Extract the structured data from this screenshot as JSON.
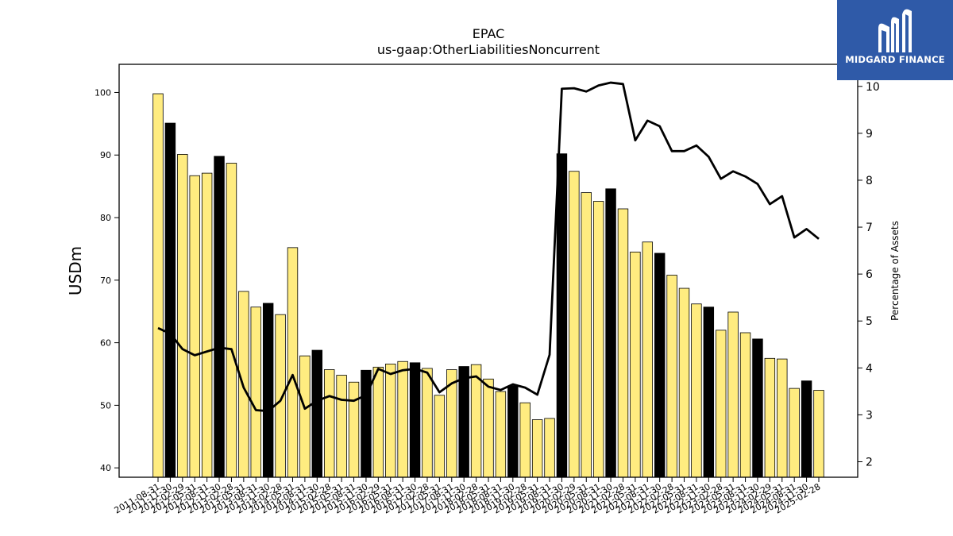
{
  "chart_data": {
    "type": "bar",
    "title": "EPAC",
    "subtitle": "us-gaap:OtherLiabilitiesNoncurrent",
    "ylabel": "USDm",
    "y2label": "Percentage of Assets",
    "ylim": [
      38.5,
      104.5
    ],
    "y2lim": [
      1.67,
      10.47
    ],
    "yticks": [
      40,
      50,
      60,
      70,
      80,
      90,
      100
    ],
    "y2ticks": [
      2,
      3,
      4,
      5,
      6,
      7,
      8,
      9,
      10
    ],
    "bar_color": "#ffec80",
    "highlight_color": "#000000",
    "line_color": "#000000",
    "categories": [
      "2011-08-31",
      "2011-11-30",
      "2012-02-29",
      "2012-05-31",
      "2012-08-31",
      "2012-11-30",
      "2013-02-28",
      "2013-05-31",
      "2013-08-31",
      "2013-11-30",
      "2014-02-28",
      "2014-05-31",
      "2014-08-31",
      "2014-11-30",
      "2015-02-28",
      "2015-05-31",
      "2015-08-31",
      "2015-11-30",
      "2016-02-29",
      "2016-05-31",
      "2016-08-31",
      "2016-11-30",
      "2017-02-28",
      "2017-05-31",
      "2017-08-31",
      "2017-11-30",
      "2018-02-28",
      "2018-05-31",
      "2018-08-31",
      "2018-11-30",
      "2019-02-28",
      "2019-05-31",
      "2019-08-31",
      "2019-11-30",
      "2020-02-29",
      "2020-05-31",
      "2020-08-31",
      "2020-11-30",
      "2021-02-28",
      "2021-05-31",
      "2021-08-31",
      "2021-11-30",
      "2022-02-28",
      "2022-05-31",
      "2022-08-31",
      "2022-11-30",
      "2023-02-28",
      "2023-05-31",
      "2023-08-31",
      "2023-11-30",
      "2024-02-29",
      "2024-05-31",
      "2024-08-31",
      "2024-11-30",
      "2025-02-28"
    ],
    "series": [
      {
        "type": "bar",
        "values": [
          99.8,
          95.1,
          90.1,
          86.7,
          87.1,
          89.8,
          88.7,
          68.2,
          65.7,
          66.3,
          64.5,
          75.2,
          57.9,
          58.8,
          55.7,
          54.8,
          53.7,
          55.6,
          56.1,
          56.6,
          57.0,
          56.8,
          55.9,
          51.6,
          55.7,
          56.2,
          56.5,
          54.2,
          52.2,
          53.1,
          50.4,
          47.7,
          47.9,
          90.2,
          87.4,
          84.0,
          82.6,
          84.6,
          81.4,
          74.5,
          76.1,
          74.3,
          70.8,
          68.7,
          66.2,
          65.7,
          62.0,
          64.9,
          61.6,
          60.6,
          57.5,
          57.4,
          52.7,
          53.9,
          52.4
        ],
        "highlight": [
          false,
          true,
          false,
          false,
          false,
          true,
          false,
          false,
          false,
          true,
          false,
          false,
          false,
          true,
          false,
          false,
          false,
          true,
          false,
          false,
          false,
          true,
          false,
          false,
          false,
          true,
          false,
          false,
          false,
          true,
          false,
          false,
          false,
          true,
          false,
          false,
          false,
          true,
          false,
          false,
          false,
          true,
          false,
          false,
          false,
          true,
          false,
          false,
          false,
          true,
          false,
          false,
          false,
          true,
          false
        ]
      },
      {
        "type": "line",
        "axis": "right",
        "values": [
          4.85,
          4.73,
          4.4,
          4.27,
          4.35,
          4.43,
          4.4,
          3.58,
          3.1,
          3.08,
          3.3,
          3.85,
          3.13,
          3.3,
          3.4,
          3.32,
          3.3,
          3.42,
          3.98,
          3.87,
          3.95,
          3.98,
          3.9,
          3.48,
          3.67,
          3.78,
          3.82,
          3.6,
          3.53,
          3.65,
          3.58,
          3.43,
          4.28,
          9.95,
          9.96,
          9.89,
          10.02,
          10.08,
          10.05,
          8.85,
          9.27,
          9.15,
          8.62,
          8.62,
          8.74,
          8.5,
          8.03,
          8.19,
          8.08,
          7.92,
          7.49,
          7.66,
          6.78,
          6.96,
          6.75
        ]
      }
    ]
  },
  "logo": {
    "text": "MIDGARD FINANCE"
  }
}
